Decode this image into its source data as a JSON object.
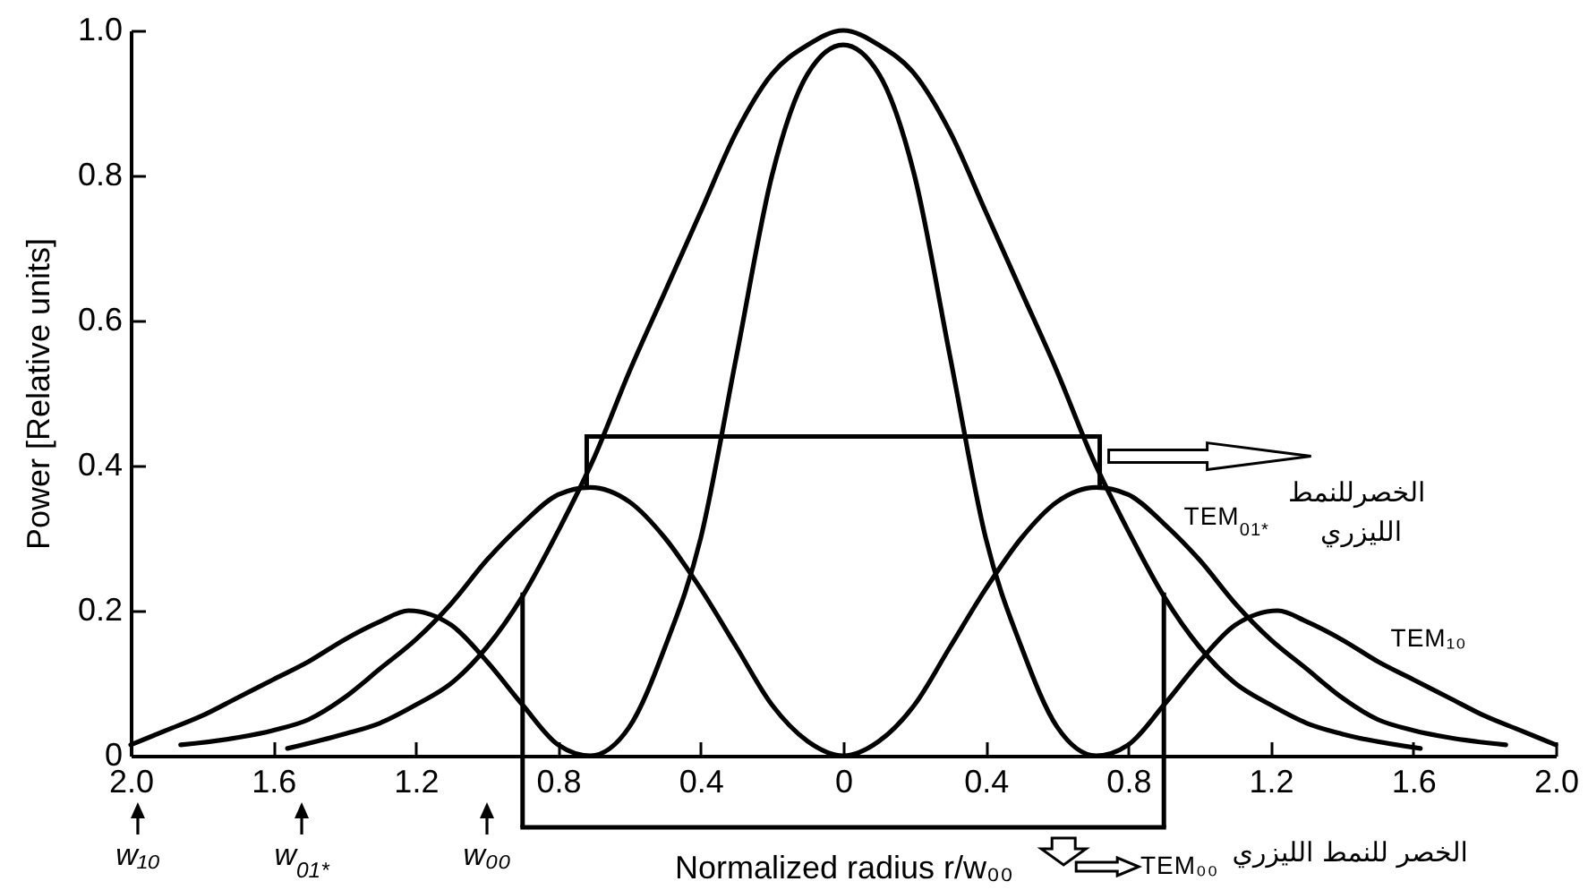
{
  "chart_data": {
    "type": "line",
    "xlabel": "Normalized radius r/w₀₀",
    "ylabel": "Power [Relative units]",
    "xlim": [
      -2,
      2
    ],
    "ylim": [
      0,
      1
    ],
    "xticks": [
      {
        "value": -2,
        "label": "2.0"
      },
      {
        "value": -1.6,
        "label": "1.6"
      },
      {
        "value": -1.2,
        "label": "1.2"
      },
      {
        "value": -0.8,
        "label": "0.8"
      },
      {
        "value": -0.4,
        "label": "0.4"
      },
      0,
      0.4,
      0.8,
      1.2,
      1.6,
      {
        "value": 2,
        "label": "2.0"
      }
    ],
    "yticks": [
      0,
      0.2,
      0.4,
      0.6,
      0.8,
      {
        "value": 1,
        "label": "1.0"
      }
    ],
    "series": [
      {
        "name": "TEM₀₀",
        "color": "#000000",
        "x": [
          -1.56,
          -1.4,
          -1.3,
          -1.2,
          -1.1,
          -1,
          -0.9,
          -0.8,
          -0.7,
          -0.6,
          -0.5,
          -0.4,
          -0.3,
          -0.2,
          -0.1,
          0,
          0.1,
          0.2,
          0.3,
          0.4,
          0.5,
          0.6,
          0.7,
          0.8,
          0.9,
          1,
          1.1,
          1.2,
          1.3,
          1.4,
          1.62
        ],
        "values": [
          0.01,
          0.03,
          0.045,
          0.07,
          0.1,
          0.15,
          0.22,
          0.31,
          0.41,
          0.53,
          0.64,
          0.75,
          0.86,
          0.94,
          0.98,
          1,
          0.98,
          0.94,
          0.86,
          0.75,
          0.64,
          0.53,
          0.41,
          0.31,
          0.22,
          0.15,
          0.1,
          0.07,
          0.045,
          0.03,
          0.01
        ]
      },
      {
        "name": "TEM$_{01*}$",
        "color": "#000000",
        "x": [
          -1.86,
          -1.7,
          -1.6,
          -1.5,
          -1.4,
          -1.3,
          -1.2,
          -1.1,
          -1,
          -0.9,
          -0.8,
          -0.71,
          -0.6,
          -0.5,
          -0.4,
          -0.3,
          -0.2,
          -0.1,
          0,
          0.1,
          0.2,
          0.3,
          0.4,
          0.5,
          0.6,
          0.71,
          0.8,
          0.9,
          1,
          1.1,
          1.2,
          1.3,
          1.4,
          1.5,
          1.6,
          1.7,
          1.86
        ],
        "values": [
          0.015,
          0.025,
          0.035,
          0.05,
          0.08,
          0.12,
          0.16,
          0.21,
          0.27,
          0.32,
          0.36,
          0.37,
          0.35,
          0.3,
          0.23,
          0.15,
          0.07,
          0.02,
          0,
          0.02,
          0.07,
          0.15,
          0.23,
          0.3,
          0.35,
          0.37,
          0.36,
          0.32,
          0.27,
          0.21,
          0.16,
          0.12,
          0.08,
          0.05,
          0.035,
          0.025,
          0.015
        ]
      },
      {
        "name": "TEM₁₀",
        "color": "#000000",
        "x": [
          -2,
          -1.9,
          -1.8,
          -1.7,
          -1.6,
          -1.5,
          -1.4,
          -1.3,
          -1.22,
          -1.1,
          -1,
          -0.9,
          -0.8,
          -0.71,
          -0.6,
          -0.5,
          -0.4,
          -0.3,
          -0.2,
          -0.1,
          0,
          0.1,
          0.2,
          0.3,
          0.4,
          0.5,
          0.6,
          0.71,
          0.8,
          0.9,
          1,
          1.1,
          1.22,
          1.3,
          1.4,
          1.5,
          1.6,
          1.7,
          1.8,
          1.9,
          2
        ],
        "values": [
          0.015,
          0.035,
          0.055,
          0.08,
          0.105,
          0.13,
          0.16,
          0.185,
          0.2,
          0.18,
          0.13,
          0.07,
          0.015,
          0,
          0.04,
          0.15,
          0.3,
          0.55,
          0.8,
          0.94,
          0.98,
          0.94,
          0.8,
          0.55,
          0.3,
          0.15,
          0.04,
          0,
          0.015,
          0.07,
          0.13,
          0.18,
          0.2,
          0.185,
          0.16,
          0.13,
          0.105,
          0.08,
          0.055,
          0.035,
          0.015
        ]
      }
    ],
    "ref_lines": [
      {
        "axis": "x",
        "value": -0.9
      },
      {
        "axis": "x",
        "value": 0.9
      }
    ],
    "annotations": [
      "w₁₀",
      "w$_{01*}$",
      "w₀₀",
      "الخصرللنمط الليزري",
      "الخصر للنمط الليزري"
    ]
  }
}
